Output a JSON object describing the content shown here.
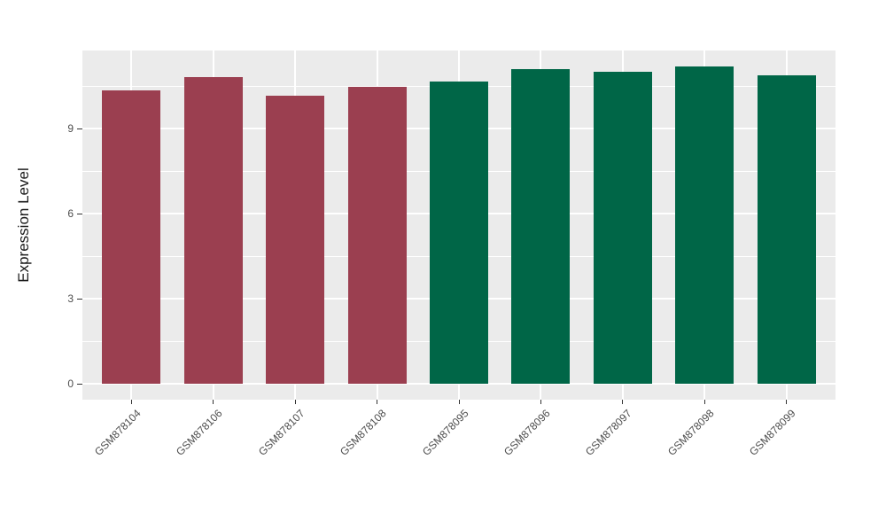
{
  "figure": {
    "background": "#FFFFFF",
    "panel_background": "#EBEBEB",
    "grid_color": "#FFFFFF",
    "axis_text_color": "#4D4D4D",
    "axis_title_color": "#1A1A1A",
    "tick_mark_color": "#333333"
  },
  "chart_data": {
    "type": "bar",
    "title": "",
    "xlabel": "",
    "ylabel": "Expression Level",
    "categories": [
      "GSM878104",
      "GSM878106",
      "GSM878107",
      "GSM878108",
      "GSM878095",
      "GSM878096",
      "GSM878097",
      "GSM878098",
      "GSM878099"
    ],
    "values": [
      10.34,
      10.81,
      10.16,
      10.47,
      10.66,
      11.09,
      11.0,
      11.19,
      10.88
    ],
    "groups": [
      "group-1",
      "group-1",
      "group-1",
      "group-1",
      "group-2",
      "group-2",
      "group-2",
      "group-2",
      "group-2"
    ],
    "bar_colors": [
      "#9B3F50",
      "#9B3F50",
      "#9B3F50",
      "#9B3F50",
      "#006647",
      "#006647",
      "#006647",
      "#006647",
      "#006647"
    ],
    "group_colors": {
      "group-1": "#9B3F50",
      "group-2": "#006647"
    },
    "yticks": [
      0,
      3,
      6,
      9
    ],
    "minor_yticks": [
      1.5,
      4.5,
      7.5,
      10.5
    ],
    "ylim": [
      -0.5625,
      11.75
    ],
    "grid": true,
    "legend_position": "none",
    "x_label_angle_deg": 45
  }
}
